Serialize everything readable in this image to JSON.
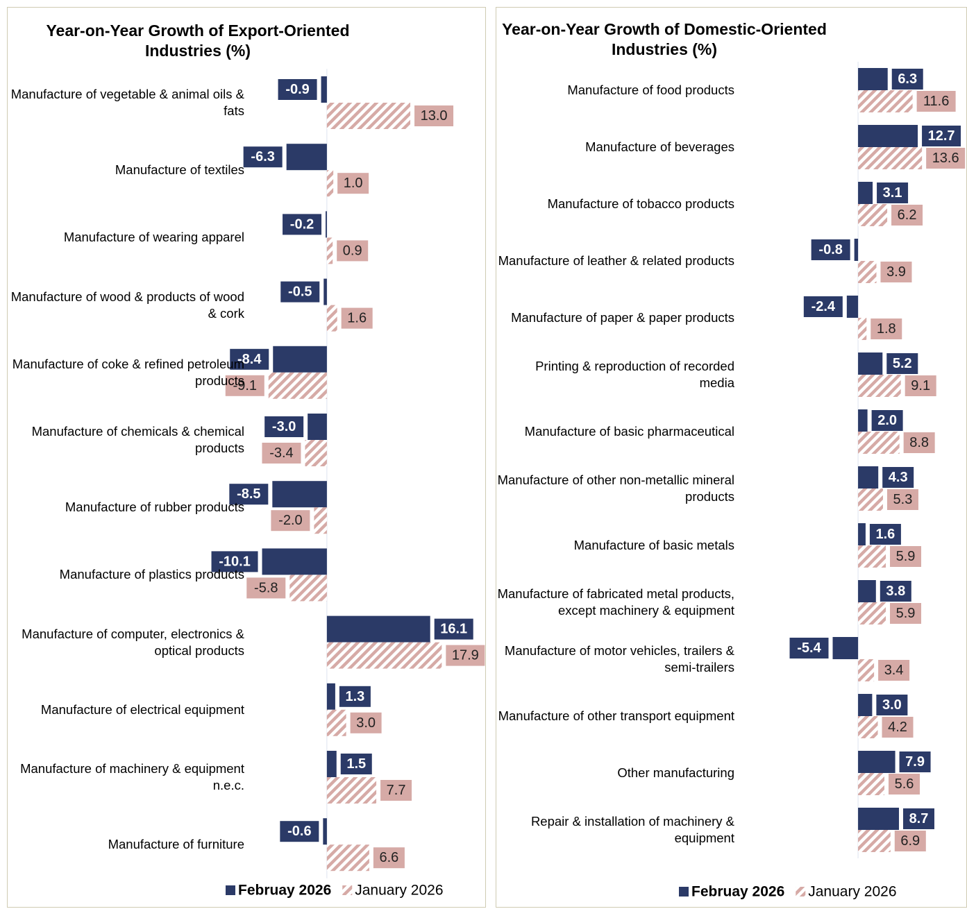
{
  "chart_data": [
    {
      "type": "barh",
      "title": "Year-on-Year Growth of Export-Oriented Industries (%)",
      "categories": [
        "Manufacture of vegetable & animal oils & fats",
        "Manufacture of textiles",
        "Manufacture of wearing apparel",
        "Manufacture of wood & products of wood & cork",
        "Manufacture of coke & refined petroleum products",
        "Manufacture of chemicals & chemical products",
        "Manufacture of rubber products",
        "Manufacture of plastics products",
        "Manufacture of computer, electronics & optical products",
        "Manufacture of electrical equipment",
        "Manufacture of machinery & equipment n.e.c.",
        "Manufacture of furniture"
      ],
      "series": [
        {
          "name": "Februay 2026",
          "color": "#2b3a67",
          "values": [
            -0.9,
            -6.3,
            -0.2,
            -0.5,
            -8.4,
            -3.0,
            -8.5,
            -10.1,
            16.1,
            1.3,
            1.5,
            -0.6
          ],
          "value_labels": [
            "-0.9",
            "-6.3",
            "-0.2",
            "-0.5",
            "-8.4",
            "-3.0",
            "-8.5",
            "-10.1",
            "16.1",
            "1.3",
            "1.5",
            "-0.6"
          ]
        },
        {
          "name": "January 2026",
          "color": "#d6aaa6",
          "hatch": true,
          "values": [
            13.0,
            1.0,
            0.9,
            1.6,
            -9.1,
            -3.4,
            -2.0,
            -5.8,
            17.9,
            3.0,
            7.7,
            6.6
          ],
          "value_labels": [
            "13.0",
            "1.0",
            "0.9",
            "1.6",
            "-9.1",
            "-3.4",
            "-2.0",
            "-5.8",
            "17.9",
            "3.0",
            "7.7",
            "6.6"
          ]
        }
      ],
      "xlim": [
        -15,
        20
      ]
    },
    {
      "type": "barh",
      "title": "Year-on-Year Growth of Domestic-Oriented Industries (%)",
      "categories": [
        "Manufacture of food products",
        "Manufacture of beverages",
        "Manufacture of tobacco products",
        "Manufacture of leather & related products",
        "Manufacture of paper & paper products",
        "Printing & reproduction of recorded media",
        "Manufacture of basic pharmaceutical",
        "Manufacture of other non-metallic mineral products",
        "Manufacture of basic metals",
        "Manufacture of fabricated metal products, except machinery & equipment",
        "Manufacture of motor vehicles, trailers & semi-trailers",
        "Manufacture of other transport equipment",
        "Other manufacturing",
        "Repair & installation of machinery & equipment"
      ],
      "series": [
        {
          "name": "Februay 2026",
          "color": "#2b3a67",
          "values": [
            6.3,
            12.7,
            3.1,
            -0.8,
            -2.4,
            5.2,
            2.0,
            4.3,
            1.6,
            3.8,
            -5.4,
            3.0,
            7.9,
            8.7
          ],
          "value_labels": [
            "6.3",
            "12.7",
            "3.1",
            "-0.8",
            "-2.4",
            "5.2",
            "2.0",
            "4.3",
            "1.6",
            "3.8",
            "-5.4",
            "3.0",
            "7.9",
            "8.7"
          ]
        },
        {
          "name": "January 2026",
          "color": "#d6aaa6",
          "hatch": true,
          "values": [
            11.6,
            13.6,
            6.2,
            3.9,
            1.8,
            9.1,
            8.8,
            5.3,
            5.9,
            5.9,
            3.4,
            4.2,
            5.6,
            6.9
          ],
          "value_labels": [
            "11.6",
            "13.6",
            "6.2",
            "3.9",
            "1.8",
            "9.1",
            "8.8",
            "5.3",
            "5.9",
            "5.9",
            "3.4",
            "4.2",
            "5.6",
            "6.9"
          ]
        }
      ],
      "xlim": [
        -15,
        20
      ]
    }
  ]
}
